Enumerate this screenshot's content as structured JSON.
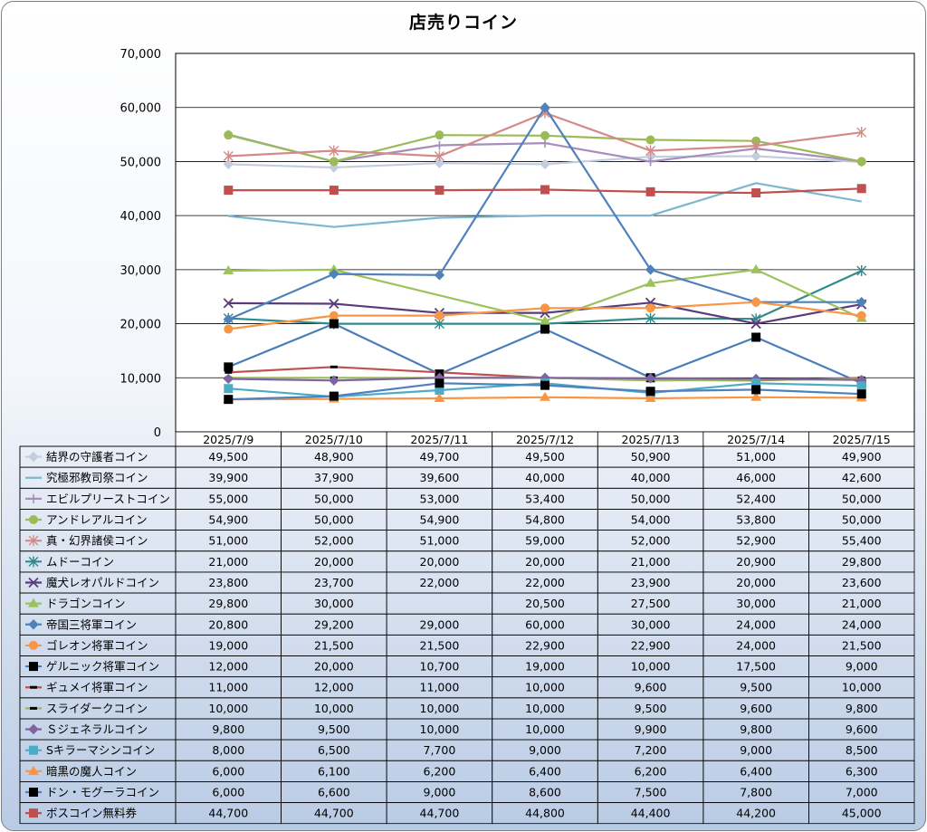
{
  "chart_data": {
    "type": "line",
    "title": "店売りコイン",
    "ylim": [
      0,
      70000
    ],
    "y_ticks": [
      "0",
      "10,000",
      "20,000",
      "30,000",
      "40,000",
      "50,000",
      "60,000",
      "70,000"
    ],
    "grid": true,
    "legend": "table-below",
    "categories": [
      "2025/7/9",
      "2025/7/10",
      "2025/7/11",
      "2025/7/12",
      "2025/7/13",
      "2025/7/14",
      "2025/7/15"
    ],
    "series": [
      {
        "name": "結界の守護者コイン",
        "color": "#c4cde0",
        "marker": "diamond",
        "values": [
          49500,
          48900,
          49700,
          49500,
          50900,
          51000,
          49900
        ],
        "labels": [
          "49,500",
          "48,900",
          "49,700",
          "49,500",
          "50,900",
          "51,000",
          "49,900"
        ]
      },
      {
        "name": "究極邪教司祭コイン",
        "color": "#7db7cf",
        "marker": "none",
        "values": [
          39900,
          37900,
          39600,
          40000,
          40000,
          46000,
          42600
        ],
        "labels": [
          "39,900",
          "37,900",
          "39,600",
          "40,000",
          "40,000",
          "46,000",
          "42,600"
        ]
      },
      {
        "name": "エビルプリーストコイン",
        "color": "#a58dbd",
        "marker": "plus",
        "values": [
          55000,
          50000,
          53000,
          53400,
          50000,
          52400,
          50000
        ],
        "labels": [
          "55,000",
          "50,000",
          "53,000",
          "53,400",
          "50,000",
          "52,400",
          "50,000"
        ]
      },
      {
        "name": "アンドレアルコイン",
        "color": "#9bbb59",
        "marker": "circle",
        "values": [
          54900,
          50000,
          54900,
          54800,
          54000,
          53800,
          50000
        ],
        "labels": [
          "54,900",
          "50,000",
          "54,900",
          "54,800",
          "54,000",
          "53,800",
          "50,000"
        ]
      },
      {
        "name": "真・幻界諸侯コイン",
        "color": "#d48a86",
        "marker": "star",
        "values": [
          51000,
          52000,
          51000,
          59000,
          52000,
          52900,
          55400
        ],
        "labels": [
          "51,000",
          "52,000",
          "51,000",
          "59,000",
          "52,000",
          "52,900",
          "55,400"
        ]
      },
      {
        "name": "ムドーコイン",
        "color": "#2e8b8a",
        "marker": "star",
        "values": [
          21000,
          20000,
          20000,
          20000,
          21000,
          20900,
          29800
        ],
        "labels": [
          "21,000",
          "20,000",
          "20,000",
          "20,000",
          "21,000",
          "20,900",
          "29,800"
        ]
      },
      {
        "name": "魔犬レオパルドコイン",
        "color": "#5b3c7b",
        "marker": "x",
        "values": [
          23800,
          23700,
          22000,
          22000,
          23900,
          20000,
          23600
        ],
        "labels": [
          "23,800",
          "23,700",
          "22,000",
          "22,000",
          "23,900",
          "20,000",
          "23,600"
        ]
      },
      {
        "name": "ドラゴンコイン",
        "color": "#9bc35a",
        "marker": "triangle",
        "values": [
          29800,
          30000,
          null,
          20500,
          27500,
          30000,
          21000
        ],
        "labels": [
          "29,800",
          "30,000",
          "",
          "20,500",
          "27,500",
          "30,000",
          "21,000"
        ]
      },
      {
        "name": "帝国三将軍コイン",
        "color": "#4f81bd",
        "marker": "diamond",
        "values": [
          20800,
          29200,
          29000,
          60000,
          30000,
          24000,
          24000
        ],
        "labels": [
          "20,800",
          "29,200",
          "29,000",
          "60,000",
          "30,000",
          "24,000",
          "24,000"
        ]
      },
      {
        "name": "ゴレオン将軍コイン",
        "color": "#f79646",
        "marker": "circle",
        "values": [
          19000,
          21500,
          21500,
          22900,
          22900,
          24000,
          21500
        ],
        "labels": [
          "19,000",
          "21,500",
          "21,500",
          "22,900",
          "22,900",
          "24,000",
          "21,500"
        ]
      },
      {
        "name": "ゲルニック将軍コイン",
        "color": "#4a7ebb",
        "marker": "square-black",
        "values": [
          12000,
          20000,
          10700,
          19000,
          10000,
          17500,
          9000
        ],
        "labels": [
          "12,000",
          "20,000",
          "10,700",
          "19,000",
          "10,000",
          "17,500",
          "9,000"
        ]
      },
      {
        "name": "ギュメイ将軍コイン",
        "color": "#c0504d",
        "marker": "dash",
        "values": [
          11000,
          12000,
          11000,
          10000,
          9600,
          9500,
          10000
        ],
        "labels": [
          "11,000",
          "12,000",
          "11,000",
          "10,000",
          "9,600",
          "9,500",
          "10,000"
        ]
      },
      {
        "name": "スライダークコイン",
        "color": "#9bbb59",
        "marker": "dash",
        "values": [
          10000,
          10000,
          10000,
          10000,
          9500,
          9600,
          9800
        ],
        "labels": [
          "10,000",
          "10,000",
          "10,000",
          "10,000",
          "9,500",
          "9,600",
          "9,800"
        ]
      },
      {
        "name": "Ｓジェネラルコイン",
        "color": "#8064a2",
        "marker": "diamond",
        "values": [
          9800,
          9500,
          10000,
          10000,
          9900,
          9800,
          9600
        ],
        "labels": [
          "9,800",
          "9,500",
          "10,000",
          "10,000",
          "9,900",
          "9,800",
          "9,600"
        ]
      },
      {
        "name": "Sキラーマシンコイン",
        "color": "#4bacc6",
        "marker": "square",
        "values": [
          8000,
          6500,
          7700,
          9000,
          7200,
          9000,
          8500
        ],
        "labels": [
          "8,000",
          "6,500",
          "7,700",
          "9,000",
          "7,200",
          "9,000",
          "8,500"
        ]
      },
      {
        "name": "暗黒の魔人コイン",
        "color": "#f79646",
        "marker": "triangle",
        "values": [
          6000,
          6100,
          6200,
          6400,
          6200,
          6400,
          6300
        ],
        "labels": [
          "6,000",
          "6,100",
          "6,200",
          "6,400",
          "6,200",
          "6,400",
          "6,300"
        ]
      },
      {
        "name": "ドン・モグーラコイン",
        "color": "#4f81bd",
        "marker": "square-black",
        "values": [
          6000,
          6600,
          9000,
          8600,
          7500,
          7800,
          7000
        ],
        "labels": [
          "6,000",
          "6,600",
          "9,000",
          "8,600",
          "7,500",
          "7,800",
          "7,000"
        ]
      },
      {
        "name": "ボスコイン無料券",
        "color": "#c0504d",
        "marker": "square",
        "values": [
          44700,
          44700,
          44700,
          44800,
          44400,
          44200,
          45000
        ],
        "labels": [
          "44,700",
          "44,700",
          "44,700",
          "44,800",
          "44,400",
          "44,200",
          "45,000"
        ]
      }
    ]
  }
}
